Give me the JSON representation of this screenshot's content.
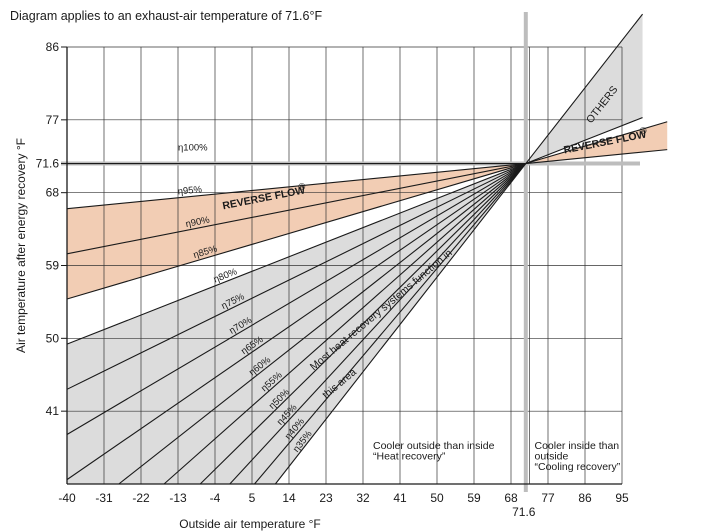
{
  "chart_data": {
    "type": "line",
    "title": "Diagram applies to an exhaust-air temperature of 71.6°F",
    "xlabel": "Outside air temperature  °F",
    "ylabel": "Air temperature after energy recovery  °F",
    "x_ticks": [
      "-40",
      "-31",
      "-22",
      "-13",
      "-4",
      "5",
      "14",
      "23",
      "32",
      "41",
      "50",
      "59",
      "68",
      "",
      "77",
      "86",
      "95"
    ],
    "x_ref_label": "71.6",
    "y_ticks": [
      "86",
      "77",
      "71.6",
      "68",
      "59",
      "50",
      "41"
    ],
    "xlim": [
      -40,
      95
    ],
    "ylim": [
      32,
      86
    ],
    "exhaust_temp": 71.6,
    "efficiencies": [
      100,
      95,
      90,
      85,
      80,
      75,
      70,
      65,
      60,
      55,
      50,
      45,
      40,
      35
    ],
    "efficiency_labels": [
      "η100%",
      "η95%",
      "η90%",
      "η85%",
      "η80%",
      "η75%",
      "η70%",
      "η65%",
      "η60%",
      "η55%",
      "η50%",
      "η45%",
      "η40%",
      "η35%"
    ],
    "regions": [
      {
        "name": "REVERSE FLOW",
        "eta_range": [
          85,
          95
        ],
        "side": "heating"
      },
      {
        "name": "Most heat recovery systems function in this area",
        "eta_range": [
          35,
          80
        ],
        "side": "heating"
      },
      {
        "name": "REVERSE FLOW",
        "eta_range": [
          85,
          95
        ],
        "side": "cooling"
      },
      {
        "name": "OTHERS",
        "eta_range": [
          35,
          80
        ],
        "side": "cooling"
      }
    ],
    "annotations": {
      "heat_recovery_1": "Cooler outside than inside",
      "heat_recovery_2": "“Heat recovery”",
      "cooling_1": "Cooler inside than",
      "cooling_2": "outside",
      "cooling_3": "“Cooling recovery”",
      "most_area_1": "Most heat recovery systems function in",
      "most_area_2": "this area",
      "reverse_flow": "REVERSE FLOW",
      "others": "OTHERS",
      "registered": "®"
    },
    "grid": true,
    "colors": {
      "reverse_flow_fill": "#f2cdb4",
      "others_fill": "#dcdcdc",
      "reference_line": "#bdbdbd",
      "line": "#1a1a1a"
    }
  }
}
